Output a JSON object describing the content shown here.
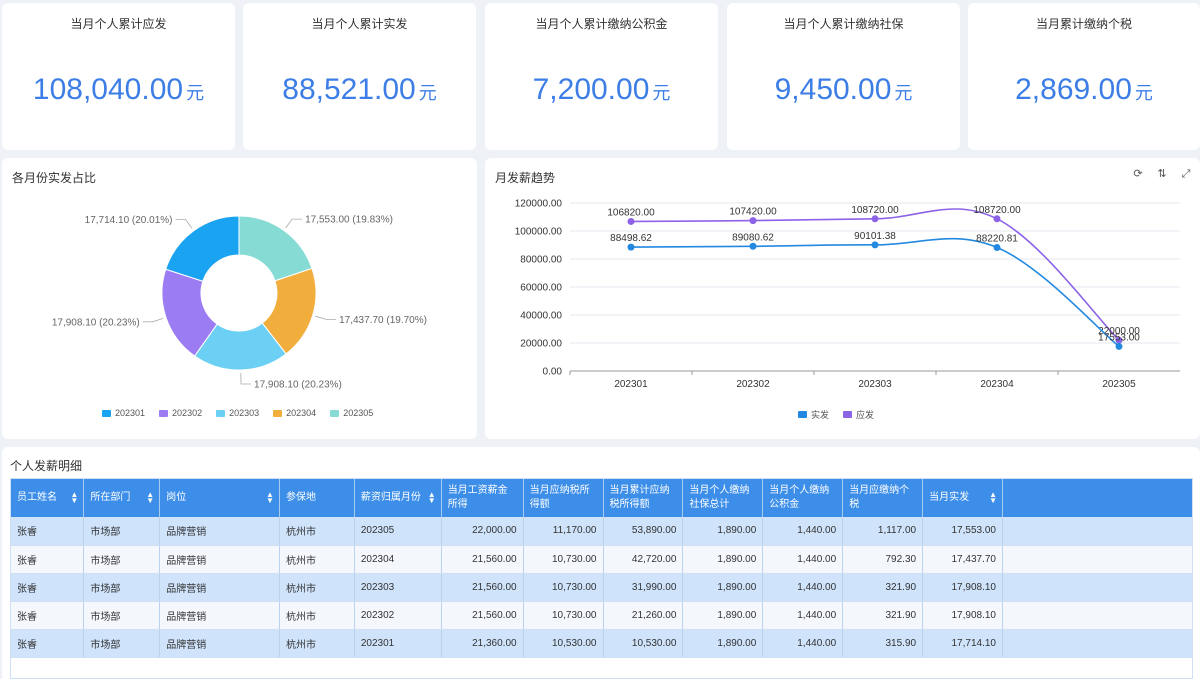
{
  "kpis": [
    {
      "title": "当月个人累计应发",
      "value": "108,040.00",
      "unit": "元"
    },
    {
      "title": "当月个人累计实发",
      "value": "88,521.00",
      "unit": "元"
    },
    {
      "title": "当月个人累计缴纳公积金",
      "value": "7,200.00",
      "unit": "元"
    },
    {
      "title": "当月个人累计缴纳社保",
      "value": "9,450.00",
      "unit": "元"
    },
    {
      "title": "当月累计缴纳个税",
      "value": "2,869.00",
      "unit": "元"
    }
  ],
  "pie_panel": {
    "title": "各月份实发占比"
  },
  "line_panel": {
    "title": "月发薪趋势",
    "tools": [
      "refresh-icon",
      "sort-icon",
      "fullscreen-icon"
    ]
  },
  "table_panel": {
    "title": "个人发薪明细",
    "columns": [
      "员工姓名",
      "所在部门",
      "岗位",
      "参保地",
      "薪资归属月份",
      "当月工资薪金所得",
      "当月应纳税所得额",
      "当月累计应纳税所得额",
      "当月个人缴纳社保总计",
      "当月个人缴纳公积金",
      "当月应缴纳个税",
      "当月实发"
    ],
    "rows": [
      [
        "张睿",
        "市场部",
        "品牌营销",
        "杭州市",
        "202305",
        "22,000.00",
        "11,170.00",
        "53,890.00",
        "1,890.00",
        "1,440.00",
        "1,117.00",
        "17,553.00"
      ],
      [
        "张睿",
        "市场部",
        "品牌营销",
        "杭州市",
        "202304",
        "21,560.00",
        "10,730.00",
        "42,720.00",
        "1,890.00",
        "1,440.00",
        "792.30",
        "17,437.70"
      ],
      [
        "张睿",
        "市场部",
        "品牌营销",
        "杭州市",
        "202303",
        "21,560.00",
        "10,730.00",
        "31,990.00",
        "1,890.00",
        "1,440.00",
        "321.90",
        "17,908.10"
      ],
      [
        "张睿",
        "市场部",
        "品牌营销",
        "杭州市",
        "202302",
        "21,560.00",
        "10,730.00",
        "21,260.00",
        "1,890.00",
        "1,440.00",
        "321.90",
        "17,908.10"
      ],
      [
        "张睿",
        "市场部",
        "品牌营销",
        "杭州市",
        "202301",
        "21,360.00",
        "10,530.00",
        "10,530.00",
        "1,890.00",
        "1,440.00",
        "315.90",
        "17,714.10"
      ]
    ]
  },
  "chart_data": [
    {
      "type": "pie",
      "title": "各月份实发占比",
      "donut": true,
      "legend_position": "bottom",
      "slices": [
        {
          "name": "202301",
          "value": 17714.1,
          "label": "17,714.10 (20.01%)",
          "color": "#1aa3f0"
        },
        {
          "name": "202302",
          "value": 17908.1,
          "label": "17,908.10 (20.23%)",
          "color": "#9b7cf2"
        },
        {
          "name": "202303",
          "value": 17908.1,
          "label": "17,908.10 (20.23%)",
          "color": "#6cd0f5"
        },
        {
          "name": "202304",
          "value": 17437.7,
          "label": "17,437.70 (19.70%)",
          "color": "#f2ae3d"
        },
        {
          "name": "202305",
          "value": 17553.0,
          "label": "17,553.00 (19.83%)",
          "color": "#86dbd4"
        }
      ]
    },
    {
      "type": "line",
      "title": "月发薪趋势",
      "categories": [
        "202301",
        "202302",
        "202303",
        "202304",
        "202305"
      ],
      "ylim": [
        0,
        120000
      ],
      "yticks": [
        "0.00",
        "20000.00",
        "40000.00",
        "60000.00",
        "80000.00",
        "100000.00",
        "120000.00"
      ],
      "legend_position": "bottom",
      "smooth": true,
      "series": [
        {
          "name": "实发",
          "color": "#2389e0",
          "values": [
            88498.62,
            89080.62,
            90101.38,
            88220.81,
            17553.0
          ],
          "labels": [
            "88498.62",
            "89080.62",
            "90101.38",
            "88220.81",
            "17553.00"
          ]
        },
        {
          "name": "应发",
          "color": "#8c63e6",
          "values": [
            106820.0,
            107420.0,
            108720.0,
            108720.0,
            22000.0
          ],
          "labels": [
            "106820.00",
            "107420.00",
            "108720.00",
            "108720.00",
            "22000.00"
          ]
        }
      ]
    }
  ]
}
